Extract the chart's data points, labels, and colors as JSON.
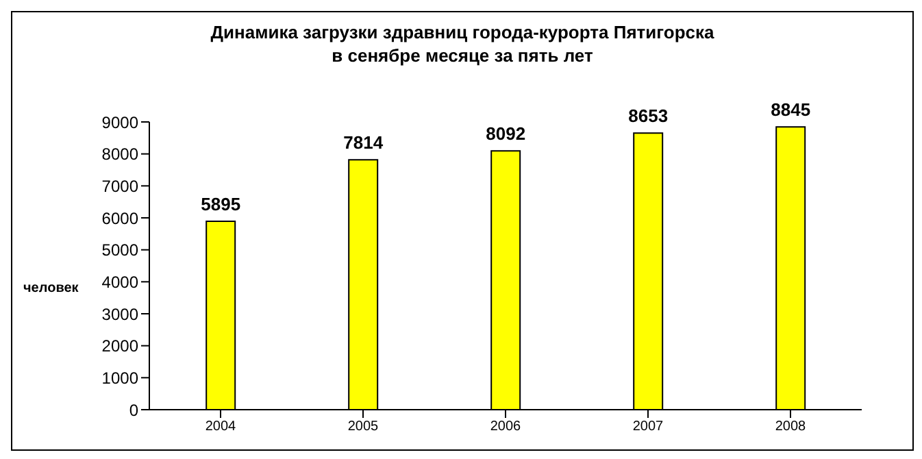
{
  "chart_data": {
    "type": "bar",
    "title": "Динамика загрузки здравниц города-курорта Пятигорска\nв сенябре месяце за пять лет",
    "ylabel": "человек",
    "categories": [
      "2004",
      "2005",
      "2006",
      "2007",
      "2008"
    ],
    "values": [
      5895,
      7814,
      8092,
      8653,
      8845
    ],
    "color": "#ffff00",
    "ylim": [
      0,
      9000
    ],
    "yticks": [
      0,
      1000,
      2000,
      3000,
      4000,
      5000,
      6000,
      7000,
      8000,
      9000
    ],
    "data_labels": true
  }
}
